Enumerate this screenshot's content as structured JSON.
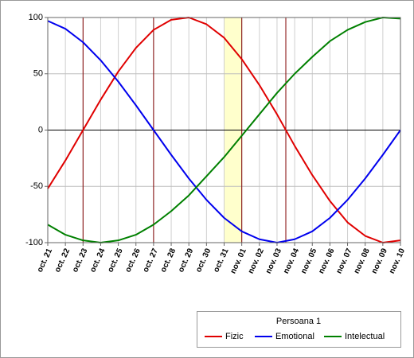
{
  "chart_data": {
    "type": "line",
    "categories": [
      "oct. 21",
      "oct. 22",
      "oct. 23",
      "oct. 24",
      "oct. 25",
      "oct. 26",
      "oct. 27",
      "oct. 28",
      "oct. 29",
      "oct. 30",
      "oct. 31",
      "nov. 01",
      "nov. 02",
      "nov. 03",
      "nov. 04",
      "nov. 05",
      "nov. 06",
      "nov. 07",
      "nov. 08",
      "nov. 09",
      "nov. 10"
    ],
    "series": [
      {
        "name": "Fizic",
        "color": "#e00000",
        "values": [
          -52,
          -27,
          0,
          27,
          52,
          73,
          89,
          98,
          100,
          94,
          82,
          63,
          40,
          14,
          -14,
          -40,
          -63,
          -82,
          -94,
          -100,
          -98
        ]
      },
      {
        "name": "Emotional",
        "color": "#0000ee",
        "values": [
          97,
          90,
          78,
          62,
          43,
          22,
          0,
          -22,
          -43,
          -62,
          -78,
          -90,
          -97,
          -100,
          -97,
          -90,
          -78,
          -62,
          -43,
          -22,
          0
        ]
      },
      {
        "name": "Intelectual",
        "color": "#008000",
        "values": [
          -84,
          -93,
          -98,
          -100,
          -98,
          -93,
          -84,
          -72,
          -58,
          -41,
          -24,
          -5,
          14,
          33,
          50,
          65,
          79,
          89,
          96,
          100,
          99
        ]
      }
    ],
    "ylim": [
      -100,
      100
    ],
    "yticks": [
      -100,
      -50,
      0,
      50,
      100
    ],
    "grid": true,
    "legend_title": "Persoana 1",
    "legend": "bottom-right"
  }
}
